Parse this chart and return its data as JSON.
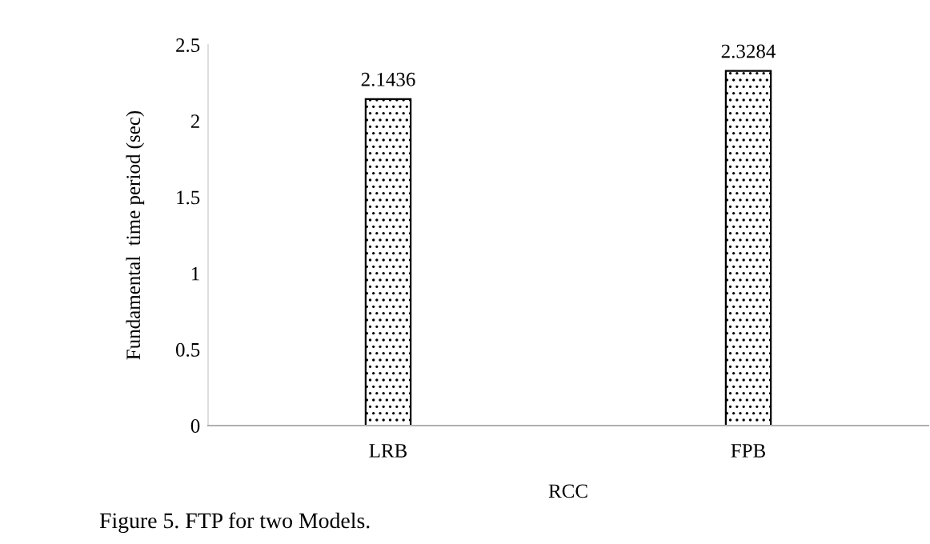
{
  "chart_data": {
    "type": "bar",
    "xlabel": "RCC",
    "ylabel": "Fundamental  time period (sec)",
    "categories": [
      "LRB",
      "FPB"
    ],
    "values": [
      2.1436,
      2.3284
    ],
    "color": "#000000",
    "ylim": [
      0,
      2.5
    ],
    "yticks": [
      0,
      0.5,
      1,
      1.5,
      2,
      2.5
    ],
    "data_labels": true,
    "grid": false,
    "legend": false,
    "annotations": [
      "Figure 5. FTP for two Models."
    ]
  }
}
